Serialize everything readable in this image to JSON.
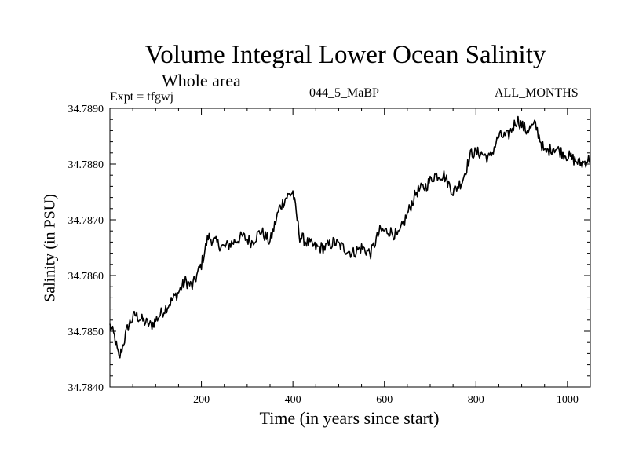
{
  "chart_data": {
    "type": "line",
    "title": "Volume Integral Lower Ocean Salinity",
    "subtitle": "Whole area",
    "experiment": "Expt = tfgwj",
    "case_label": "044_5_MaBP",
    "months_label": "ALL_MONTHS",
    "xlabel": "Time (in years since start)",
    "ylabel": "Salinity (in PSU)",
    "xlim": [
      0,
      1050
    ],
    "ylim": [
      34.784,
      34.789
    ],
    "x_ticks": [
      200,
      400,
      600,
      800,
      1000
    ],
    "y_ticks": [
      "34.7840",
      "34.7850",
      "34.7860",
      "34.7870",
      "34.7880",
      "34.7890"
    ],
    "grid": false,
    "series": [
      {
        "name": "Salinity",
        "x": [
          0,
          10,
          20,
          30,
          40,
          55,
          70,
          90,
          110,
          130,
          150,
          165,
          180,
          200,
          215,
          230,
          250,
          270,
          290,
          310,
          330,
          350,
          370,
          385,
          400,
          415,
          430,
          450,
          470,
          490,
          510,
          530,
          550,
          570,
          590,
          610,
          630,
          650,
          670,
          690,
          710,
          730,
          750,
          770,
          790,
          810,
          830,
          850,
          870,
          890,
          910,
          930,
          950,
          970,
          990,
          1010,
          1030,
          1050
        ],
        "y": [
          34.7851,
          34.7849,
          34.7845,
          34.7848,
          34.7851,
          34.7853,
          34.7852,
          34.7851,
          34.7853,
          34.7855,
          34.7857,
          34.7859,
          34.7858,
          34.7862,
          34.7867,
          34.7866,
          34.7865,
          34.7866,
          34.7867,
          34.7866,
          34.7868,
          34.7866,
          34.7872,
          34.7874,
          34.7875,
          34.7867,
          34.7866,
          34.7865,
          34.7865,
          34.7866,
          34.7865,
          34.7864,
          34.7865,
          34.7864,
          34.7868,
          34.7868,
          34.7867,
          34.7871,
          34.7875,
          34.7876,
          34.7878,
          34.7878,
          34.7875,
          34.7877,
          34.7882,
          34.7882,
          34.7881,
          34.7885,
          34.7885,
          34.7888,
          34.7886,
          34.7887,
          34.7882,
          34.7883,
          34.7882,
          34.7881,
          34.788,
          34.7881
        ]
      }
    ]
  }
}
